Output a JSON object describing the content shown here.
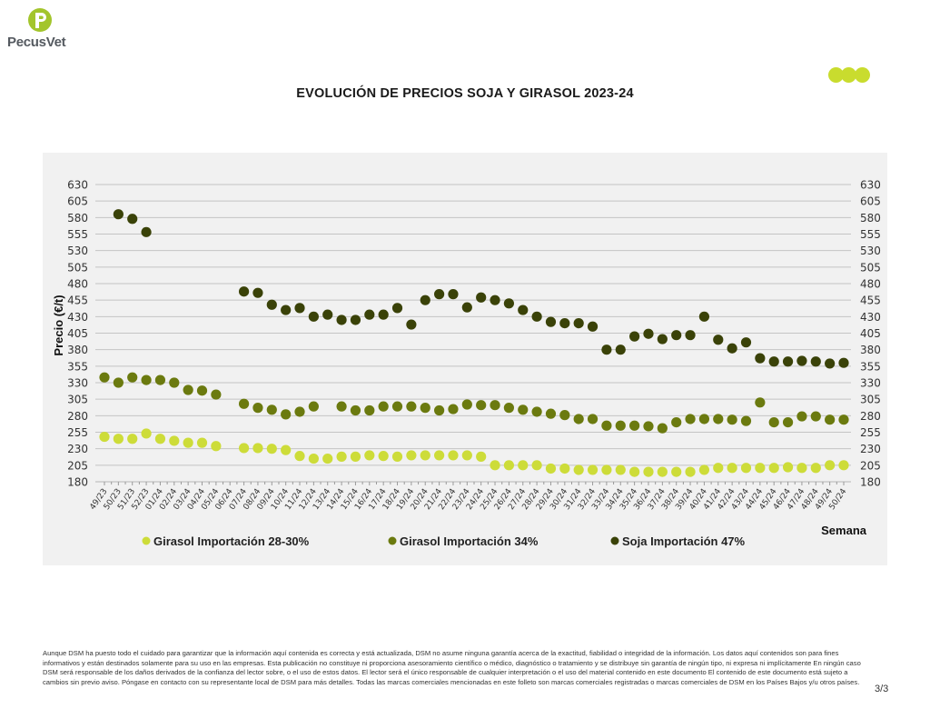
{
  "header": {
    "logo_text": "PecusVet",
    "logo_letter": "P",
    "brand_colors": {
      "logo_green": "#9cc027",
      "logo_text": "#555a60",
      "dots": "#c9dc2e"
    },
    "decoration": "three-dots"
  },
  "page_title": "EVOLUCIÓN DE PRECIOS SOJA Y GIRASOL 2023-24",
  "footer": {
    "disclaimer": "Aunque DSM ha puesto todo el cuidado para garantizar que la información aquí contenida es correcta y está actualizada, DSM no asume ninguna garantía acerca de la exactitud, fiabilidad o integridad de la información. Los datos aquí contenidos son para fines informativos y están destinados solamente para su uso en las empresas. Esta publicación no constituye ni proporciona asesoramiento científico o médico, diagnóstico o tratamiento y se distribuye sin garantía de ningún tipo, ni expresa ni implícitamente En ningún caso DSM será responsable de los daños derivados de la confianza del lector sobre, o el uso de estos datos. El lector será el único responsable de cualquier interpretación o el uso del material contenido en este documento El contenido de este documento está sujeto a cambios sin previo aviso. Póngase en contacto con su representante local de DSM para más detalles. Todas las marcas comerciales mencionadas en este folleto son marcas comerciales registradas o marcas comerciales de DSM en los Países Bajos y/u otros países.",
    "page_number": "3/3"
  },
  "chart_data": {
    "type": "scatter",
    "title": "EVOLUCIÓN DE PRECIOS SOJA Y GIRASOL 2023-24",
    "xlabel": "Semana",
    "ylabel": "Precio (€/t)",
    "ylim": [
      180,
      630
    ],
    "yticks": [
      180,
      205,
      230,
      255,
      280,
      305,
      330,
      355,
      380,
      405,
      430,
      455,
      480,
      505,
      530,
      555,
      580,
      605,
      630
    ],
    "y_axis_right": true,
    "grid": true,
    "legend_position": "bottom",
    "categories": [
      "49/23",
      "50/23",
      "51/23",
      "52/23",
      "01/24",
      "02/24",
      "03/24",
      "04/24",
      "05/24",
      "06/24",
      "07/24",
      "08/24",
      "09/24",
      "10/24",
      "11/24",
      "12/24",
      "13/24",
      "14/24",
      "15/24",
      "16/24",
      "17/24",
      "18/24",
      "19/24",
      "20/24",
      "21/24",
      "22/24",
      "23/24",
      "24/24",
      "25/24",
      "26/24",
      "27/24",
      "28/24",
      "29/24",
      "30/24",
      "31/24",
      "32/24",
      "33/24",
      "34/24",
      "35/24",
      "36/24",
      "37/24",
      "38/24",
      "39/24",
      "40/24",
      "41/24",
      "42/24",
      "43/24",
      "44/24",
      "45/24",
      "46/24",
      "47/24",
      "48/24",
      "49/24",
      "50/24"
    ],
    "series": [
      {
        "name": "Girasol Importación 28-30%",
        "color": "#cddc39",
        "values": [
          248,
          245,
          245,
          253,
          245,
          242,
          239,
          239,
          234,
          null,
          231,
          231,
          230,
          228,
          219,
          215,
          215,
          218,
          218,
          220,
          219,
          218,
          220,
          220,
          220,
          220,
          220,
          218,
          205,
          205,
          205,
          205,
          200,
          200,
          198,
          198,
          198,
          198,
          195,
          195,
          195,
          195,
          195,
          198,
          201,
          201,
          201,
          201,
          201,
          202,
          201,
          201,
          205,
          205
        ]
      },
      {
        "name": "Girasol Importación 34%",
        "color": "#6b7a0f",
        "values": [
          338,
          330,
          338,
          334,
          334,
          330,
          319,
          318,
          312,
          null,
          298,
          292,
          289,
          282,
          286,
          294,
          null,
          294,
          288,
          288,
          294,
          294,
          294,
          292,
          288,
          290,
          297,
          296,
          296,
          292,
          289,
          286,
          283,
          281,
          275,
          275,
          265,
          265,
          265,
          264,
          261,
          270,
          275,
          275,
          275,
          274,
          272,
          300,
          270,
          270,
          279,
          279,
          274,
          274
        ]
      },
      {
        "name": "Soja Importación 47%",
        "color": "#3a4208",
        "values": [
          null,
          585,
          578,
          558,
          null,
          null,
          null,
          null,
          null,
          null,
          468,
          466,
          448,
          440,
          443,
          430,
          433,
          425,
          425,
          433,
          433,
          443,
          418,
          455,
          464,
          464,
          444,
          459,
          455,
          450,
          440,
          430,
          422,
          420,
          420,
          415,
          380,
          380,
          400,
          404,
          396,
          402,
          402,
          430,
          395,
          382,
          391,
          367,
          362,
          362,
          363,
          362,
          359,
          360
        ]
      }
    ]
  }
}
